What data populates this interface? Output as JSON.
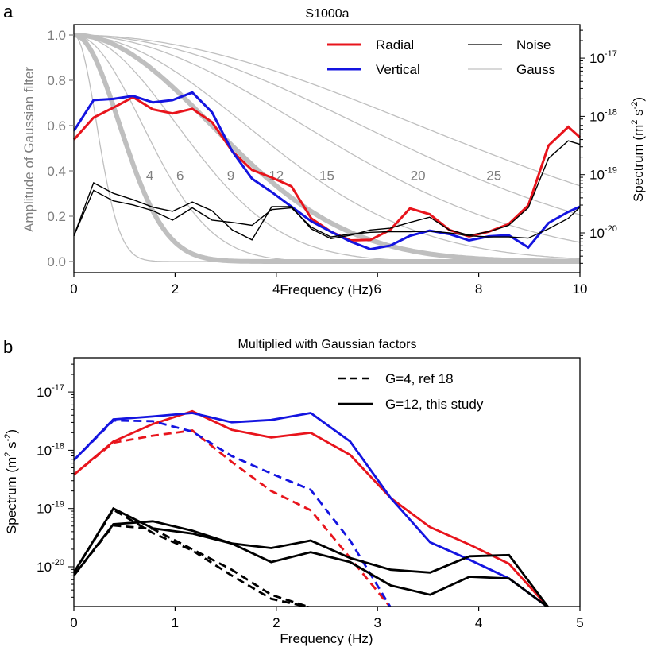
{
  "chart_data": [
    {
      "id": "panel-a",
      "panel_letter": "a",
      "type": "line",
      "title": "S1000a",
      "xlabel": "Frequency (Hz)",
      "ylabel_left": "Amplitude of Gaussian filter",
      "ylabel_right": "Spectrum (m² s⁻²)",
      "ylabel_right_parts": {
        "pre": "Spectrum (m",
        "sup1": "2",
        "mid": " s",
        "sup2": "-2",
        "post": ")"
      },
      "xlim": [
        0,
        10
      ],
      "ylim_left": [
        -0.05,
        1.05
      ],
      "ylim_right_log": [
        -20.6,
        -16.6
      ],
      "x_ticks": [
        0,
        2,
        4,
        6,
        8,
        10
      ],
      "y_ticks_left": [
        0.0,
        0.2,
        0.4,
        0.6,
        0.8,
        1.0
      ],
      "y_tick_labels_left": [
        "0.0",
        "0.2",
        "0.4",
        "0.6",
        "0.8",
        "1.0"
      ],
      "y_ticks_right_exp": [
        -20,
        -19,
        -18,
        -17
      ],
      "legend": [
        {
          "label": "Radial",
          "color": "#e8141c",
          "style": "solid-thick"
        },
        {
          "label": "Vertical",
          "color": "#1414e0",
          "style": "solid-thick"
        },
        {
          "label": "Noise",
          "color": "#000000",
          "style": "solid-thin"
        },
        {
          "label": "Gauss",
          "color": "#c0c0c0",
          "style": "solid-thin"
        }
      ],
      "legend_position": "top-right",
      "gauss_factors": [
        2,
        4,
        6,
        9,
        12,
        15,
        20,
        25,
        30
      ],
      "gauss_thick_factors": [
        4,
        12
      ],
      "gauss_annotations": [
        {
          "label": "4",
          "x": 1.5
        },
        {
          "label": "6",
          "x": 2.1
        },
        {
          "label": "9",
          "x": 3.1
        },
        {
          "label": "12",
          "x": 4.0
        },
        {
          "label": "15",
          "x": 5.0
        },
        {
          "label": "20",
          "x": 6.8
        },
        {
          "label": "25",
          "x": 8.3
        }
      ],
      "gauss_annotation_y": 0.38,
      "x": [
        0,
        0.39,
        0.78,
        1.17,
        1.56,
        1.95,
        2.34,
        2.73,
        3.13,
        3.52,
        3.91,
        4.3,
        4.69,
        5.08,
        5.47,
        5.86,
        6.25,
        6.64,
        7.03,
        7.42,
        7.81,
        8.2,
        8.59,
        8.98,
        9.38,
        9.77,
        10.0
      ],
      "series": [
        {
          "name": "Radial",
          "color": "#e8141c",
          "axis": "right-log",
          "values_log10": [
            -18.4,
            -18.02,
            -17.85,
            -17.67,
            -17.88,
            -17.95,
            -17.87,
            -18.1,
            -18.6,
            -18.92,
            -19.05,
            -19.2,
            -19.75,
            -19.98,
            -20.13,
            -20.12,
            -19.95,
            -19.58,
            -19.68,
            -19.95,
            -20.06,
            -19.98,
            -19.85,
            -19.53,
            -18.5,
            -18.18,
            -18.36
          ]
        },
        {
          "name": "Vertical",
          "color": "#1414e0",
          "axis": "right-log",
          "values_log10": [
            -18.25,
            -17.72,
            -17.7,
            -17.65,
            -17.76,
            -17.72,
            -17.59,
            -17.93,
            -18.6,
            -19.07,
            -19.3,
            -19.55,
            -19.8,
            -19.98,
            -20.15,
            -20.28,
            -20.22,
            -20.05,
            -19.96,
            -20.02,
            -20.13,
            -20.06,
            -20.04,
            -20.25,
            -19.83,
            -19.64,
            -19.55
          ]
        },
        {
          "name": "Noise 1",
          "color": "#000000",
          "axis": "right-log",
          "values_log10": [
            -20.05,
            -19.27,
            -19.45,
            -19.52,
            -19.62,
            -19.78,
            -19.57,
            -19.78,
            -19.82,
            -19.87,
            -19.6,
            -19.57,
            -19.9,
            -20.07,
            -20.02,
            -19.99,
            -19.98,
            -19.98,
            -19.97,
            -20.0,
            -20.05,
            -20.07,
            -20.07,
            -20.09,
            -19.93,
            -19.75,
            -19.56
          ]
        },
        {
          "name": "Noise 2",
          "color": "#000000",
          "axis": "right-log",
          "values_log10": [
            -20.05,
            -19.14,
            -19.32,
            -19.43,
            -19.56,
            -19.63,
            -19.47,
            -19.62,
            -19.95,
            -20.12,
            -19.55,
            -19.55,
            -19.93,
            -20.1,
            -20.04,
            -19.95,
            -19.92,
            -19.82,
            -19.73,
            -19.95,
            -20.04,
            -19.98,
            -19.87,
            -19.57,
            -18.72,
            -18.42,
            -18.48
          ]
        }
      ]
    },
    {
      "id": "panel-b",
      "panel_letter": "b",
      "type": "line",
      "title": "Multiplied with Gaussian factors",
      "xlabel": "Frequency (Hz)",
      "ylabel": "Spectrum (m² s⁻²)",
      "ylabel_parts": {
        "pre": "Spectrum (m",
        "sup1": "2",
        "mid": " s",
        "sup2": "-2",
        "post": ")"
      },
      "xlim": [
        0,
        5
      ],
      "ylim_log": [
        -20.68,
        -16.42
      ],
      "x_ticks": [
        0,
        1,
        2,
        3,
        4,
        5
      ],
      "y_ticks_exp": [
        -20,
        -19,
        -18,
        -17
      ],
      "legend": [
        {
          "label": "G=4, ref 18",
          "style": "dashed",
          "color": "#000000"
        },
        {
          "label": "G=12, this study",
          "style": "solid",
          "color": "#000000"
        }
      ],
      "legend_position": "top-right",
      "x": [
        0,
        0.39,
        0.78,
        1.17,
        1.56,
        1.95,
        2.34,
        2.73,
        3.13,
        3.52,
        3.91,
        4.3,
        4.69
      ],
      "series": [
        {
          "name": "Radial G=12",
          "color": "#e8141c",
          "dash": false,
          "values_log10": [
            -18.42,
            -17.85,
            -17.55,
            -17.33,
            -17.65,
            -17.78,
            -17.7,
            -18.08,
            -18.82,
            -19.32,
            -19.62,
            -19.95,
            -20.7
          ]
        },
        {
          "name": "Vertical G=12",
          "color": "#1414e0",
          "dash": false,
          "values_log10": [
            -18.17,
            -17.47,
            -17.42,
            -17.36,
            -17.52,
            -17.48,
            -17.36,
            -17.85,
            -18.82,
            -19.58,
            -19.88,
            -20.2,
            -20.7
          ]
        },
        {
          "name": "Radial G=4",
          "color": "#e8141c",
          "dash": true,
          "values_log10": [
            -18.42,
            -17.87,
            -17.75,
            -17.66,
            -18.2,
            -18.7,
            -19.03,
            -19.85,
            -20.7
          ]
        },
        {
          "name": "Vertical G=4",
          "color": "#1414e0",
          "dash": true,
          "values_log10": [
            -18.17,
            -17.49,
            -17.5,
            -17.68,
            -18.1,
            -18.4,
            -18.68,
            -19.55,
            -20.7
          ]
        },
        {
          "name": "Noise 1 G=12",
          "color": "#000000",
          "dash": false,
          "values_log10": [
            -20.1,
            -19.0,
            -19.34,
            -19.43,
            -19.6,
            -19.68,
            -19.55,
            -19.85,
            -20.05,
            -20.1,
            -19.82,
            -19.8,
            -20.7
          ]
        },
        {
          "name": "Noise 2 G=12",
          "color": "#000000",
          "dash": false,
          "values_log10": [
            -20.15,
            -19.27,
            -19.22,
            -19.38,
            -19.6,
            -19.92,
            -19.75,
            -19.92,
            -20.32,
            -20.48,
            -20.17,
            -20.2,
            -20.7
          ]
        },
        {
          "name": "Noise 1 G=4",
          "color": "#000000",
          "dash": true,
          "values_log10": [
            -20.1,
            -19.02,
            -19.42,
            -19.72,
            -20.15,
            -20.55,
            -20.7
          ]
        },
        {
          "name": "Noise 2 G=4",
          "color": "#000000",
          "dash": true,
          "values_log10": [
            -20.15,
            -19.29,
            -19.35,
            -19.7,
            -20.05,
            -20.48,
            -20.7
          ]
        }
      ]
    }
  ]
}
